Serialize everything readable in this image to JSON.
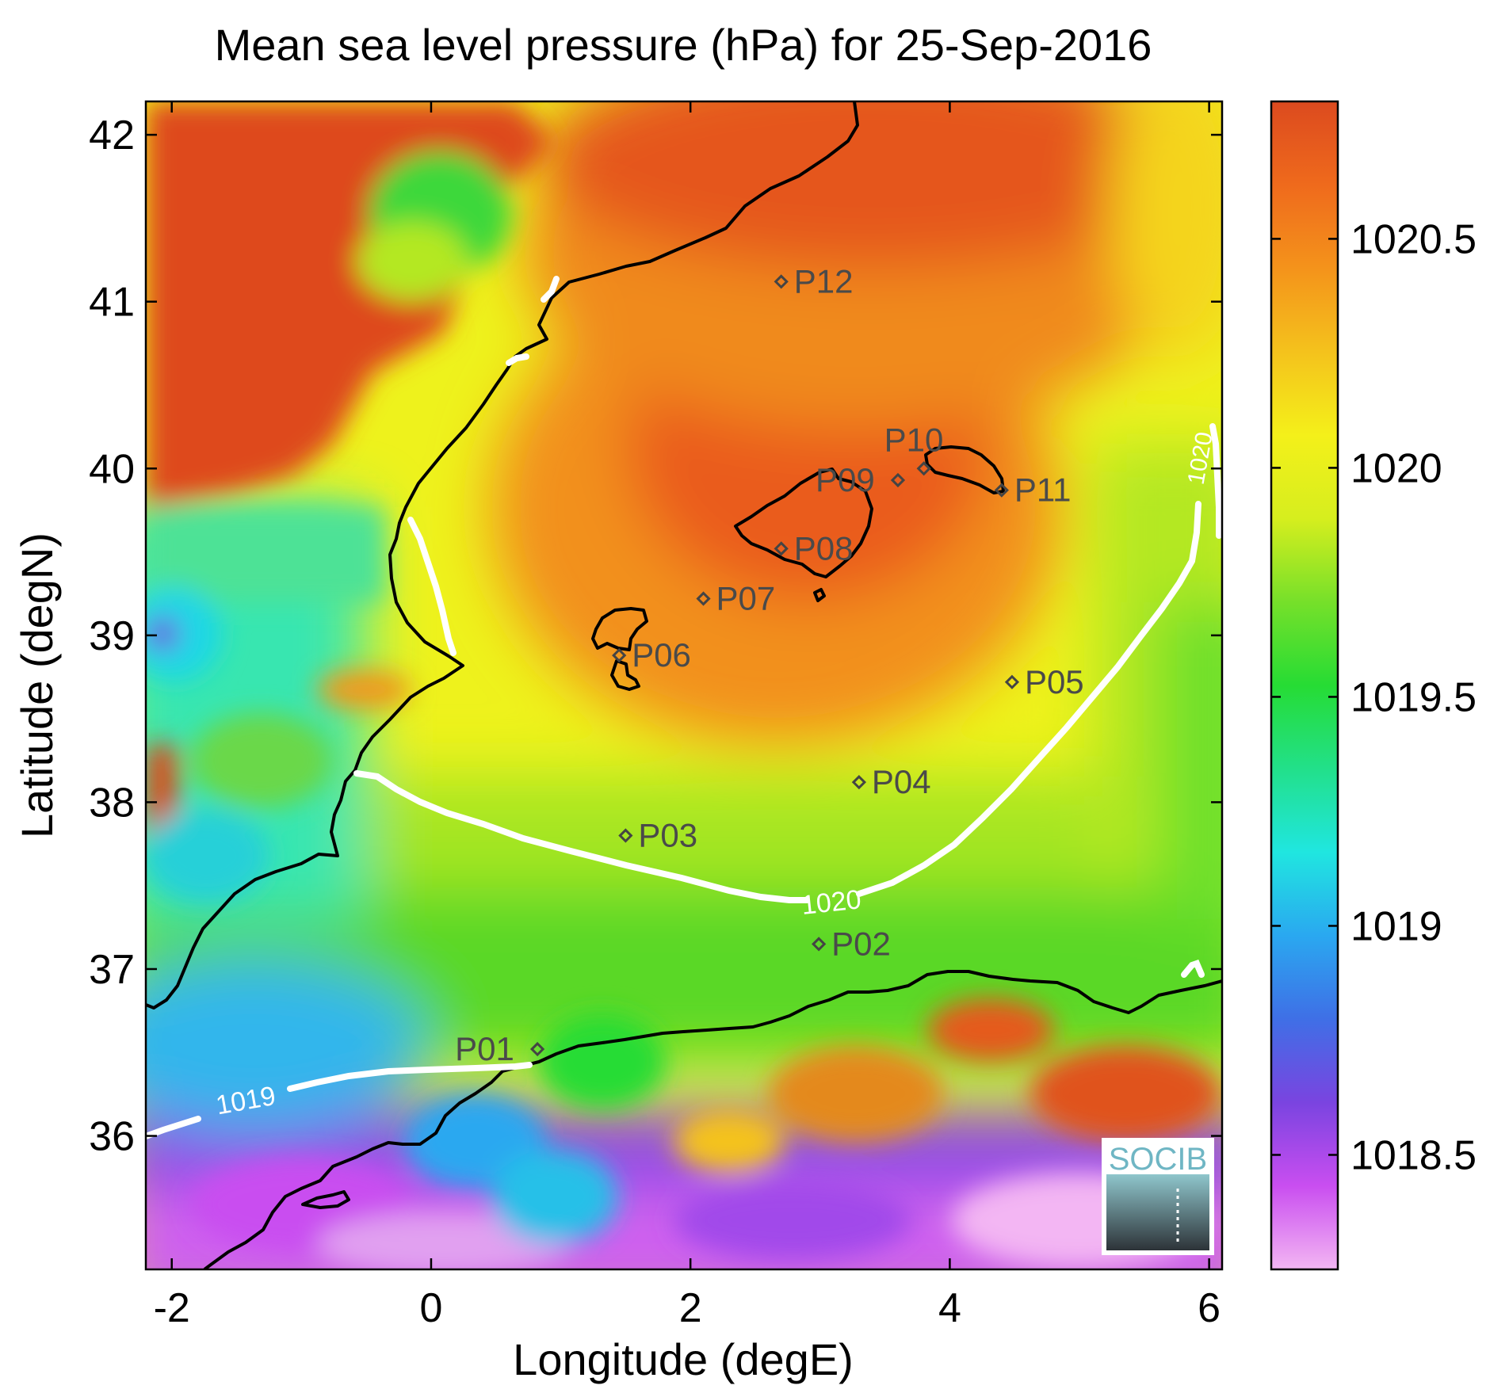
{
  "title": "Mean sea level pressure (hPa) for 25-Sep-2016",
  "xlabel": "Longitude (degE)",
  "ylabel": "Latitude (degN)",
  "map": {
    "lon_range": [
      -2.2,
      6.1
    ],
    "lat_range": [
      35.2,
      42.2
    ],
    "x_ticks": [
      -2,
      0,
      2,
      4,
      6
    ],
    "y_ticks": [
      36,
      37,
      38,
      39,
      40,
      41,
      42
    ],
    "x_tick_labels": [
      "-2",
      "0",
      "2",
      "4",
      "6"
    ],
    "y_tick_labels": [
      "36",
      "37",
      "38",
      "39",
      "40",
      "41",
      "42"
    ]
  },
  "colorbar": {
    "range": [
      1018.25,
      1020.8
    ],
    "ticks": [
      1018.5,
      1019,
      1019.5,
      1020,
      1020.5
    ],
    "tick_labels": [
      "1018.5",
      "1019",
      "1019.5",
      "1020",
      "1020.5"
    ],
    "colors": [
      "#f3b6f3",
      "#c94ef0",
      "#7a44e0",
      "#3f6fe6",
      "#2aa8f0",
      "#20e6e0",
      "#22e08a",
      "#26dc34",
      "#76e02a",
      "#d6ee1e",
      "#f4f01a",
      "#f4c21c",
      "#f4931b",
      "#ef6a1c",
      "#dc4a1f"
    ]
  },
  "contours": [
    {
      "label": "1020",
      "color": "#ffffff"
    },
    {
      "label": "1019",
      "color": "#ffffff"
    }
  ],
  "stations": [
    {
      "name": "P01",
      "lon": 0.82,
      "lat": 36.52
    },
    {
      "name": "P02",
      "lon": 2.99,
      "lat": 37.15
    },
    {
      "name": "P03",
      "lon": 1.5,
      "lat": 37.8
    },
    {
      "name": "P04",
      "lon": 3.3,
      "lat": 38.12
    },
    {
      "name": "P05",
      "lon": 4.48,
      "lat": 38.72
    },
    {
      "name": "P06",
      "lon": 1.45,
      "lat": 38.88
    },
    {
      "name": "P07",
      "lon": 2.1,
      "lat": 39.22
    },
    {
      "name": "P08",
      "lon": 2.7,
      "lat": 39.52
    },
    {
      "name": "P09",
      "lon": 3.6,
      "lat": 39.93
    },
    {
      "name": "P10",
      "lon": 3.8,
      "lat": 40.0
    },
    {
      "name": "P11",
      "lon": 4.4,
      "lat": 39.87
    },
    {
      "name": "P12",
      "lon": 2.7,
      "lat": 41.12
    }
  ],
  "logo": {
    "text": "SOCIB"
  }
}
